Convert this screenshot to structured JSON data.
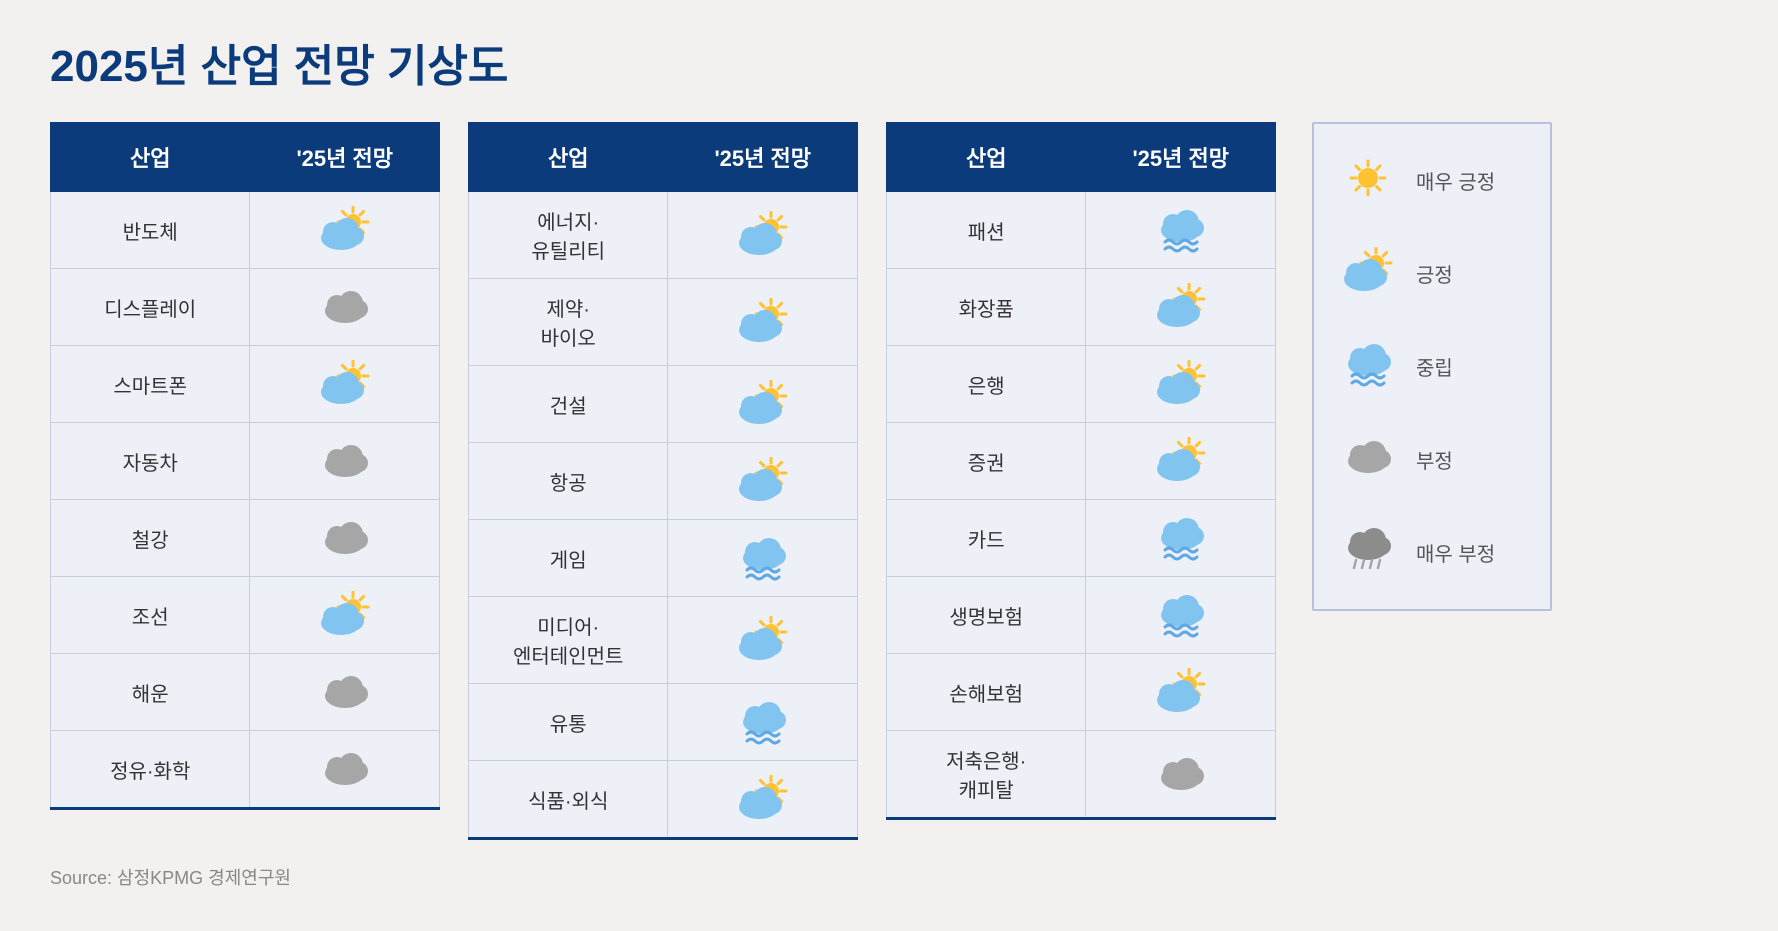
{
  "title": "2025년 산업 전망 기상도",
  "source_label": "Source: 삼정KPMG 경제연구원",
  "colors": {
    "header_bg": "#0b3b7a",
    "header_text": "#ffffff",
    "cell_bg": "#eef0f8",
    "cell_border": "#c9cde0",
    "page_bg": "#f2f1f0",
    "text": "#333333",
    "muted": "#888888",
    "sun": "#ffc233",
    "cloud_blue": "#82c4f0",
    "cloud_grey": "#a6a6a6",
    "cloud_darkgrey": "#8c8c8c",
    "wave": "#5fa8e6",
    "rain": "#a6a6a6"
  },
  "table_headers": {
    "industry": "산업",
    "outlook": "'25년 전망"
  },
  "icon_types": {
    "very_positive": "very_positive",
    "positive": "positive",
    "neutral": "neutral",
    "negative": "negative",
    "very_negative": "very_negative"
  },
  "legend": [
    {
      "icon": "very_positive",
      "label": "매우 긍정"
    },
    {
      "icon": "positive",
      "label": "긍정"
    },
    {
      "icon": "neutral",
      "label": "중립"
    },
    {
      "icon": "negative",
      "label": "부정"
    },
    {
      "icon": "very_negative",
      "label": "매우 부정"
    }
  ],
  "tables": [
    {
      "rows": [
        {
          "label": "반도체",
          "icon": "positive"
        },
        {
          "label": "디스플레이",
          "icon": "negative"
        },
        {
          "label": "스마트폰",
          "icon": "positive"
        },
        {
          "label": "자동차",
          "icon": "negative"
        },
        {
          "label": "철강",
          "icon": "negative"
        },
        {
          "label": "조선",
          "icon": "positive"
        },
        {
          "label": "해운",
          "icon": "negative"
        },
        {
          "label": "정유·화학",
          "icon": "negative"
        }
      ]
    },
    {
      "rows": [
        {
          "label": "에너지·\n유틸리티",
          "icon": "positive"
        },
        {
          "label": "제약·\n바이오",
          "icon": "positive"
        },
        {
          "label": "건설",
          "icon": "positive"
        },
        {
          "label": "항공",
          "icon": "positive"
        },
        {
          "label": "게임",
          "icon": "neutral"
        },
        {
          "label": "미디어·\n엔터테인먼트",
          "icon": "positive"
        },
        {
          "label": "유통",
          "icon": "neutral"
        },
        {
          "label": "식품·외식",
          "icon": "positive"
        }
      ]
    },
    {
      "rows": [
        {
          "label": "패션",
          "icon": "neutral"
        },
        {
          "label": "화장품",
          "icon": "positive"
        },
        {
          "label": "은행",
          "icon": "positive"
        },
        {
          "label": "증권",
          "icon": "positive"
        },
        {
          "label": "카드",
          "icon": "neutral"
        },
        {
          "label": "생명보험",
          "icon": "neutral"
        },
        {
          "label": "손해보험",
          "icon": "positive"
        },
        {
          "label": "저축은행·\n캐피탈",
          "icon": "negative"
        }
      ]
    }
  ]
}
